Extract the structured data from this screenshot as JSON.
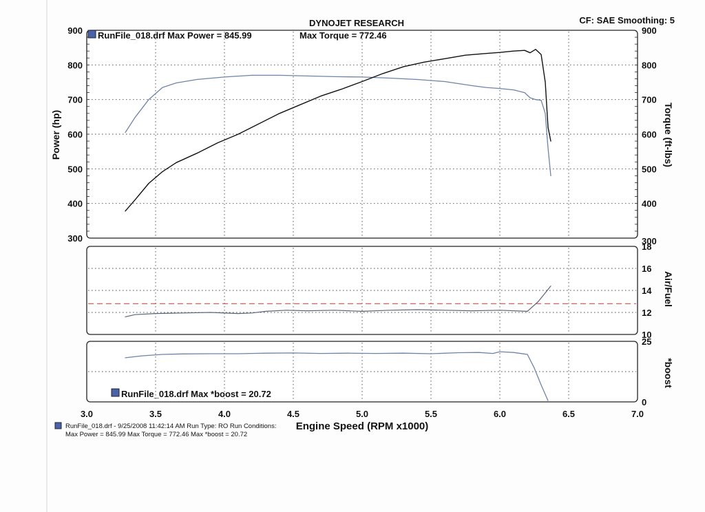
{
  "header": {
    "title": "DYNOJET RESEARCH",
    "settings": "CF: SAE  Smoothing: 5"
  },
  "colors": {
    "power_curve": "#111111",
    "torque_curve": "#6f82a8",
    "afr_curve": "#5a6378",
    "target_line": "#c0392b",
    "boost_curve": "#6f82a8",
    "legend_swatch": "#4a62a8"
  },
  "chart_data": [
    {
      "type": "line",
      "panel": "power-torque",
      "legend": "RunFile_018.drf Max Power = 845.99",
      "legend_extra": "Max Torque = 772.46",
      "ylabel": "Power (hp)",
      "ylabel_right": "Torque (ft-lbs)",
      "ylim": [
        300,
        900
      ],
      "yticks": [
        "300",
        "400",
        "500",
        "600",
        "700",
        "800",
        "900"
      ],
      "xlim": [
        3.0,
        7.0
      ],
      "grid": true,
      "series": [
        {
          "key": "power",
          "x": [
            3.28,
            3.35,
            3.45,
            3.55,
            3.65,
            3.8,
            3.95,
            4.1,
            4.25,
            4.4,
            4.55,
            4.7,
            4.85,
            5.0,
            5.15,
            5.3,
            5.45,
            5.6,
            5.75,
            5.9,
            6.0,
            6.1,
            6.18,
            6.22,
            6.26,
            6.3,
            6.33,
            6.35,
            6.37
          ],
          "values": [
            378,
            410,
            458,
            492,
            518,
            545,
            575,
            600,
            630,
            660,
            685,
            710,
            730,
            752,
            775,
            795,
            808,
            818,
            828,
            833,
            836,
            840,
            842,
            835,
            845,
            830,
            750,
            620,
            580
          ]
        },
        {
          "key": "torque",
          "x": [
            3.28,
            3.35,
            3.45,
            3.55,
            3.65,
            3.8,
            4.0,
            4.2,
            4.4,
            4.6,
            4.8,
            5.0,
            5.2,
            5.4,
            5.6,
            5.8,
            5.9,
            6.0,
            6.1,
            6.18,
            6.22,
            6.26,
            6.3,
            6.33,
            6.35,
            6.37
          ],
          "values": [
            605,
            648,
            700,
            735,
            748,
            758,
            765,
            770,
            770,
            768,
            766,
            765,
            762,
            758,
            752,
            740,
            735,
            732,
            728,
            720,
            705,
            700,
            698,
            660,
            560,
            480
          ]
        }
      ]
    },
    {
      "type": "line",
      "panel": "air-fuel",
      "ylabel_right": "Air/Fuel",
      "ylim": [
        10,
        18
      ],
      "yticks": [
        "10",
        "12",
        "14",
        "16",
        "18"
      ],
      "xlim": [
        3.0,
        7.0
      ],
      "grid": true,
      "target": 12.8,
      "series": [
        {
          "key": "afr",
          "x": [
            3.28,
            3.35,
            3.5,
            3.7,
            3.9,
            4.1,
            4.2,
            4.3,
            4.45,
            4.6,
            4.8,
            5.0,
            5.2,
            5.4,
            5.6,
            5.8,
            6.0,
            6.2,
            6.28,
            6.37
          ],
          "values": [
            11.6,
            11.8,
            11.9,
            11.95,
            12.0,
            11.9,
            11.95,
            12.1,
            12.2,
            12.15,
            12.2,
            12.1,
            12.2,
            12.25,
            12.2,
            12.15,
            12.2,
            12.1,
            13.0,
            14.4
          ]
        }
      ]
    },
    {
      "type": "line",
      "panel": "boost",
      "legend": "RunFile_018.drf Max *boost = 20.72",
      "ylabel_right": "*boost",
      "ylim": [
        0,
        25
      ],
      "yticks": [
        "0",
        "25"
      ],
      "xlim": [
        3.0,
        7.0
      ],
      "xticks": [
        "3.0",
        "3.5",
        "4.0",
        "4.5",
        "5.0",
        "5.5",
        "6.0",
        "6.5",
        "7.0"
      ],
      "xlabel": "Engine Speed (RPM x1000)",
      "grid": true,
      "series": [
        {
          "key": "boost",
          "x": [
            3.28,
            3.4,
            3.55,
            3.7,
            3.9,
            4.1,
            4.3,
            4.5,
            4.7,
            4.9,
            5.1,
            5.3,
            5.5,
            5.7,
            5.85,
            5.95,
            6.0,
            6.1,
            6.2,
            6.25,
            6.3,
            6.35
          ],
          "values": [
            18.2,
            19.0,
            19.6,
            19.8,
            19.9,
            19.9,
            20.1,
            20.2,
            20.0,
            20.1,
            20.0,
            20.1,
            19.9,
            20.3,
            20.4,
            20.0,
            20.72,
            20.4,
            19.6,
            14.0,
            7.0,
            0.5
          ]
        }
      ]
    }
  ],
  "footer": {
    "line1": "RunFile_018.drf - 9/25/2008 11:42:14 AM  Run Type: RO  Run Conditions:",
    "line2": "Max Power = 845.99  Max Torque = 772.46  Max *boost = 20.72"
  }
}
